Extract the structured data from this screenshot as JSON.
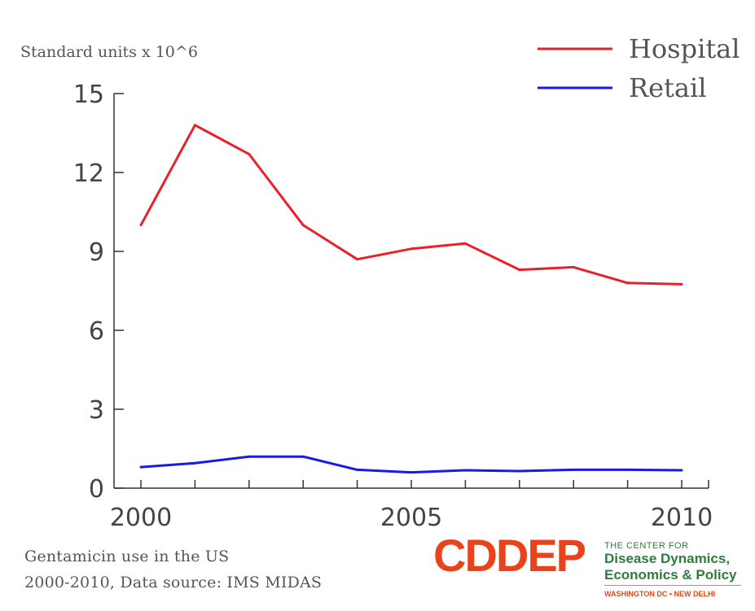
{
  "chart_data": {
    "type": "line",
    "title": "",
    "ylabel": "Standard units x 10^6",
    "xlabel": "",
    "x": [
      2000,
      2001,
      2002,
      2003,
      2004,
      2005,
      2006,
      2007,
      2008,
      2009,
      2010
    ],
    "xlim": [
      2000,
      2010
    ],
    "ylim": [
      0,
      15
    ],
    "x_ticks": [
      2000,
      2005,
      2010
    ],
    "y_ticks": [
      0,
      3,
      6,
      9,
      12,
      15
    ],
    "grid": false,
    "legend_position": "top-right",
    "series": [
      {
        "name": "Hospital",
        "color": "#e8202a",
        "values": [
          10.0,
          13.8,
          12.7,
          10.0,
          8.7,
          9.1,
          9.3,
          8.3,
          8.4,
          7.8,
          7.75
        ]
      },
      {
        "name": "Retail",
        "color": "#1a1ae6",
        "values": [
          0.8,
          0.95,
          1.2,
          1.2,
          0.7,
          0.6,
          0.68,
          0.65,
          0.7,
          0.7,
          0.68
        ]
      }
    ]
  },
  "caption": {
    "line1": "Gentamicin use in the US",
    "line2": "2000-2010, Data source: IMS MIDAS"
  },
  "logo": {
    "wordmark": "CDDEP",
    "wordmark_color": "#e8431a",
    "line1": "THE CENTER FOR",
    "line2": "Disease Dynamics,",
    "line3": "Economics & Policy",
    "line4": "WASHINGTON DC • NEW DELHI",
    "text_color": "#2e7d3a",
    "tagline_color": "#e8431a"
  }
}
